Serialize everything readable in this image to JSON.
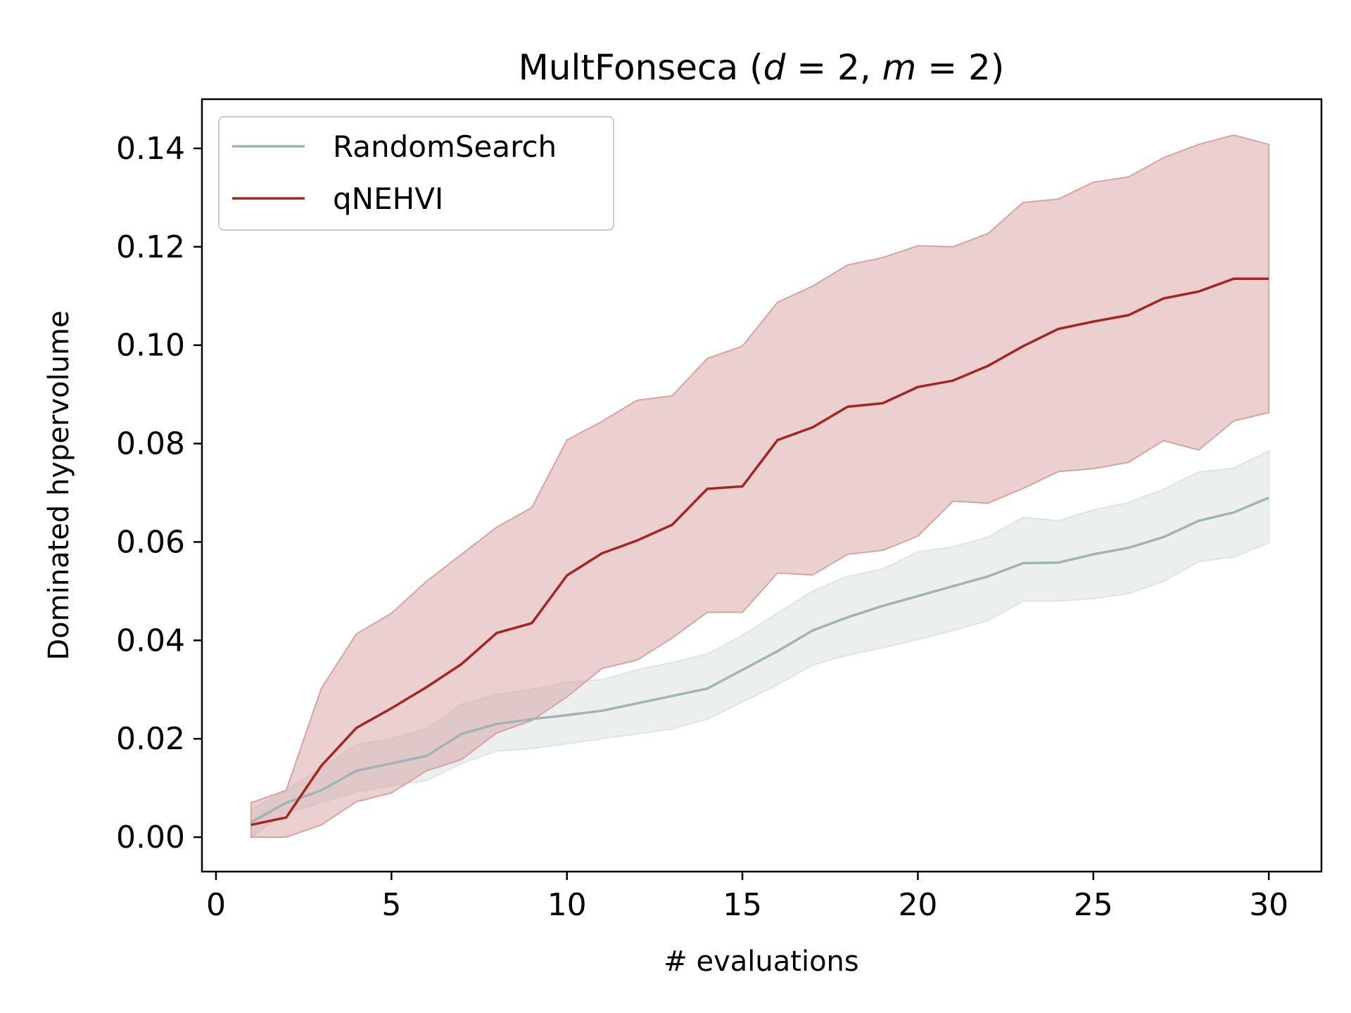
{
  "chart_data": {
    "type": "line",
    "title": {
      "prefix": "MultFonseca (",
      "var_d": "d",
      "eq_d": " = 2, ",
      "var_m": "m",
      "eq_m": " = 2)"
    },
    "xlabel": "# evaluations",
    "ylabel": "Dominated hypervolume",
    "xlim": [
      -0.4,
      31.5
    ],
    "ylim": [
      -0.007,
      0.15
    ],
    "xticks": [
      0,
      5,
      10,
      15,
      20,
      25,
      30
    ],
    "xtick_labels": [
      "0",
      "5",
      "10",
      "15",
      "20",
      "25",
      "30"
    ],
    "yticks": [
      0.0,
      0.02,
      0.04,
      0.06,
      0.08,
      0.1,
      0.12,
      0.14
    ],
    "ytick_labels": [
      "0.00",
      "0.02",
      "0.04",
      "0.06",
      "0.08",
      "0.10",
      "0.12",
      "0.14"
    ],
    "grid": false,
    "legend_position": "top-left",
    "x": [
      1,
      2,
      3,
      4,
      5,
      6,
      7,
      8,
      9,
      10,
      11,
      12,
      13,
      14,
      15,
      16,
      17,
      18,
      19,
      20,
      21,
      22,
      23,
      24,
      25,
      26,
      27,
      28,
      29,
      30
    ],
    "series": [
      {
        "name": "RandomSearch",
        "color": "#9fb5b3",
        "band_color": "#dde5e3",
        "mean": [
          0.003,
          0.007,
          0.0095,
          0.0135,
          0.015,
          0.0165,
          0.021,
          0.023,
          0.024,
          0.0248,
          0.0257,
          0.0272,
          0.0287,
          0.0302,
          0.034,
          0.0378,
          0.042,
          0.0447,
          0.047,
          0.049,
          0.051,
          0.053,
          0.0557,
          0.0558,
          0.0575,
          0.0588,
          0.061,
          0.0643,
          0.066,
          0.069
        ],
        "lower": [
          0.0,
          0.005,
          0.007,
          0.0092,
          0.0105,
          0.0115,
          0.015,
          0.0175,
          0.018,
          0.019,
          0.02,
          0.021,
          0.022,
          0.024,
          0.0275,
          0.031,
          0.035,
          0.037,
          0.0385,
          0.0402,
          0.042,
          0.044,
          0.048,
          0.048,
          0.0485,
          0.0495,
          0.052,
          0.056,
          0.057,
          0.0598
        ],
        "upper": [
          0.0055,
          0.0095,
          0.014,
          0.0188,
          0.02,
          0.022,
          0.027,
          0.029,
          0.03,
          0.0315,
          0.032,
          0.034,
          0.0355,
          0.0372,
          0.041,
          0.0455,
          0.05,
          0.053,
          0.0545,
          0.058,
          0.059,
          0.061,
          0.065,
          0.0643,
          0.0665,
          0.068,
          0.0707,
          0.0742,
          0.075,
          0.0785
        ]
      },
      {
        "name": "qNEHVI",
        "color": "#a62422",
        "band_color": "#d8a2a1",
        "mean": [
          0.0025,
          0.004,
          0.0145,
          0.0222,
          0.0262,
          0.0305,
          0.0352,
          0.0415,
          0.0435,
          0.0532,
          0.0577,
          0.0603,
          0.0635,
          0.0708,
          0.0713,
          0.0807,
          0.0833,
          0.0875,
          0.0882,
          0.0915,
          0.0928,
          0.0958,
          0.0998,
          0.1033,
          0.1048,
          0.1061,
          0.1095,
          0.1109,
          0.1135,
          0.1135
        ],
        "lower": [
          0.0,
          0.0,
          0.0025,
          0.0072,
          0.009,
          0.0135,
          0.0158,
          0.0212,
          0.0237,
          0.0285,
          0.0343,
          0.036,
          0.0405,
          0.0457,
          0.0457,
          0.0537,
          0.0533,
          0.0575,
          0.0583,
          0.0612,
          0.0683,
          0.0679,
          0.0709,
          0.0743,
          0.0749,
          0.0762,
          0.0806,
          0.0787,
          0.0846,
          0.0863
        ],
        "upper": [
          0.007,
          0.0095,
          0.0302,
          0.0413,
          0.0455,
          0.052,
          0.0575,
          0.063,
          0.067,
          0.0807,
          0.0845,
          0.0888,
          0.0897,
          0.0973,
          0.0998,
          0.1087,
          0.112,
          0.1163,
          0.1178,
          0.1202,
          0.12,
          0.1227,
          0.129,
          0.1297,
          0.1331,
          0.1342,
          0.1381,
          0.1408,
          0.1427,
          0.1408
        ]
      }
    ]
  }
}
